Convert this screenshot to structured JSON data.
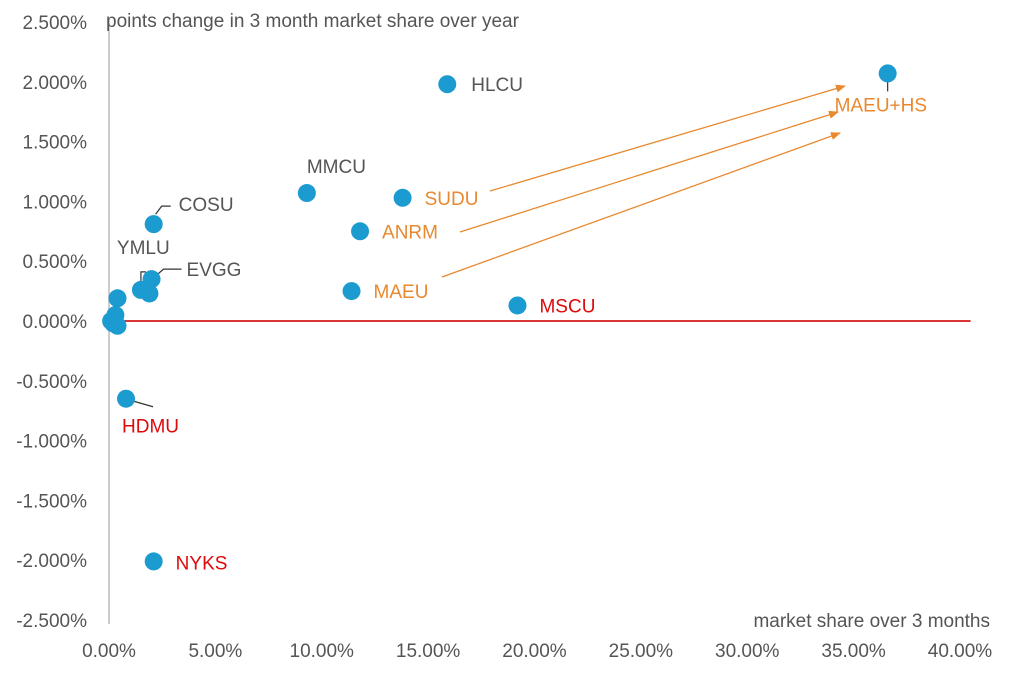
{
  "colors": {
    "point": "#1b9bd0",
    "text_gray": "#555555",
    "orange": "#e8892f",
    "red": "#dd0a0a",
    "axis": "#bbbbbb",
    "baseline": "#d61a1a",
    "leader": "#333333"
  },
  "chart_data": {
    "type": "scatter",
    "title": "",
    "xlabel": "market share over 3 months",
    "ylabel": "points change in 3 month market share over year",
    "xlim": [
      0,
      40
    ],
    "ylim": [
      -2.5,
      2.5
    ],
    "x_ticks": [
      0,
      5,
      10,
      15,
      20,
      25,
      30,
      35,
      40
    ],
    "x_tick_labels": [
      "0.00%",
      "5.00%",
      "10.00%",
      "15.00%",
      "20.00%",
      "25.00%",
      "30.00%",
      "35.00%",
      "40.00%"
    ],
    "y_ticks": [
      2.5,
      2.0,
      1.5,
      1.0,
      0.5,
      0.0,
      -0.5,
      -1.0,
      -1.5,
      -2.0,
      -2.5
    ],
    "y_tick_labels": [
      "2.500%",
      "2.000%",
      "1.500%",
      "1.000%",
      "0.500%",
      "0.000%",
      "-0.500%",
      "-1.000%",
      "-1.500%",
      "-2.000%",
      "-2.500%"
    ],
    "reference_line": {
      "y": 0,
      "x_range": [
        0.2,
        40.5
      ]
    },
    "points": [
      {
        "label": "HLCU",
        "x": 15.9,
        "y": 1.98,
        "label_color": "gray"
      },
      {
        "label": "MMCU",
        "x": 9.3,
        "y": 1.07,
        "label_color": "gray"
      },
      {
        "label": "SUDU",
        "x": 13.8,
        "y": 1.03,
        "label_color": "orange"
      },
      {
        "label": "ANRM",
        "x": 11.8,
        "y": 0.75,
        "label_color": "orange"
      },
      {
        "label": "MAEU",
        "x": 11.4,
        "y": 0.25,
        "label_color": "orange"
      },
      {
        "label": "MSCU",
        "x": 19.2,
        "y": 0.13,
        "label_color": "red"
      },
      {
        "label": "COSU",
        "x": 2.1,
        "y": 0.81,
        "label_color": "gray"
      },
      {
        "label": "EVGG",
        "x": 2.0,
        "y": 0.35,
        "label_color": "gray"
      },
      {
        "label": "YMLU",
        "x": 1.5,
        "y": 0.26,
        "label_color": "gray"
      },
      {
        "label": "",
        "x": 1.9,
        "y": 0.23,
        "label_color": "gray"
      },
      {
        "label": "",
        "x": 0.4,
        "y": 0.19,
        "label_color": "gray"
      },
      {
        "label": "",
        "x": 0.3,
        "y": 0.05,
        "label_color": "gray"
      },
      {
        "label": "",
        "x": 0.1,
        "y": 0.0,
        "label_color": "gray"
      },
      {
        "label": "",
        "x": 0.2,
        "y": -0.02,
        "label_color": "gray"
      },
      {
        "label": "",
        "x": 0.4,
        "y": -0.04,
        "label_color": "gray"
      },
      {
        "label": "HDMU",
        "x": 0.8,
        "y": -0.65,
        "label_color": "red"
      },
      {
        "label": "NYKS",
        "x": 2.1,
        "y": -2.01,
        "label_color": "red"
      },
      {
        "label": "MAEU+HS",
        "x": 36.6,
        "y": 2.07,
        "label_color": "orange"
      }
    ],
    "arrows": [
      {
        "from": "SUDU",
        "to": "MAEU+HS"
      },
      {
        "from": "ANRM",
        "to": "MAEU+HS"
      },
      {
        "from": "MAEU",
        "to": "MAEU+HS"
      }
    ]
  }
}
